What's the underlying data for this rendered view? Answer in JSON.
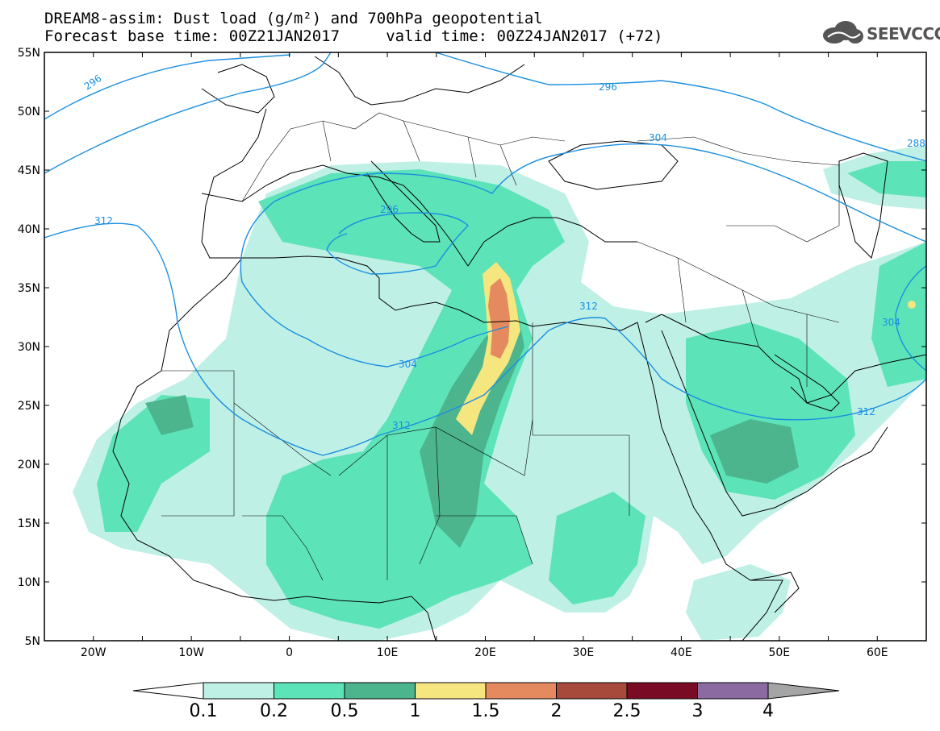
{
  "header": {
    "line1": "DREAM8-assim: Dust load (g/m²) and 700hPa geopotential",
    "line2": "Forecast base time: 00Z21JAN2017     valid time: 00Z24JAN2017 (+72)"
  },
  "logo": {
    "icon": "cloud-logo-icon",
    "text": "SEEVCCC"
  },
  "axes": {
    "lat_labels": [
      "55N",
      "50N",
      "45N",
      "40N",
      "35N",
      "30N",
      "25N",
      "20N",
      "15N",
      "10N",
      "5N"
    ],
    "lon_labels": [
      "20W",
      "10W",
      "0",
      "10E",
      "20E",
      "30E",
      "40E",
      "50E",
      "60E"
    ],
    "lon_range": [
      -25,
      65
    ],
    "lat_range": [
      5,
      55
    ]
  },
  "contour_labels": [
    "296",
    "296",
    "296",
    "304",
    "304",
    "304",
    "312",
    "312",
    "312",
    "312",
    "288"
  ],
  "colorbar": {
    "levels": [
      "0.1",
      "0.2",
      "0.5",
      "1",
      "1.5",
      "2",
      "2.5",
      "3",
      "4"
    ],
    "colors": [
      "#ffffff",
      "#bff0e6",
      "#5de3b8",
      "#4db58e",
      "#f5e680",
      "#e58a5e",
      "#a84a3b",
      "#7a0b24",
      "#8a6aa0",
      "#a5a5a5"
    ]
  }
}
